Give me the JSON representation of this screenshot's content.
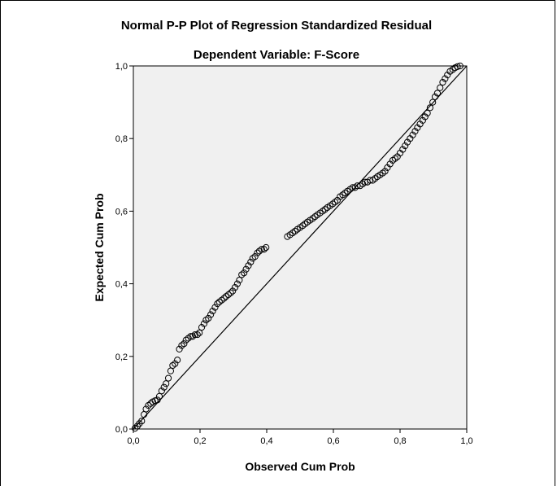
{
  "chart_data": {
    "type": "scatter",
    "title": "Normal P-P Plot of Regression Standardized Residual",
    "subtitle": "Dependent Variable: F-Score",
    "xlabel": "Observed Cum Prob",
    "ylabel": "Expected Cum Prob",
    "xlim": [
      0.0,
      1.0
    ],
    "ylim": [
      0.0,
      1.0
    ],
    "x_ticks": [
      "0,0",
      "0,2",
      "0,4",
      "0,6",
      "0,8",
      "1,0"
    ],
    "y_ticks": [
      "0,0",
      "0,2",
      "0,4",
      "0,6",
      "0,8",
      "1,0"
    ],
    "grid": false,
    "reference_line": [
      [
        0.0,
        0.0
      ],
      [
        1.0,
        1.0
      ]
    ],
    "colors": {
      "plot_background": "#f0f0f0",
      "marker_edge": "#000000",
      "line": "#000000"
    },
    "series": [
      {
        "marker": "circle-open",
        "points": [
          [
            0.005,
            0.002
          ],
          [
            0.012,
            0.008
          ],
          [
            0.018,
            0.015
          ],
          [
            0.025,
            0.022
          ],
          [
            0.032,
            0.04
          ],
          [
            0.038,
            0.055
          ],
          [
            0.045,
            0.065
          ],
          [
            0.052,
            0.07
          ],
          [
            0.058,
            0.075
          ],
          [
            0.065,
            0.078
          ],
          [
            0.072,
            0.08
          ],
          [
            0.078,
            0.09
          ],
          [
            0.085,
            0.105
          ],
          [
            0.092,
            0.115
          ],
          [
            0.098,
            0.125
          ],
          [
            0.105,
            0.14
          ],
          [
            0.112,
            0.16
          ],
          [
            0.118,
            0.175
          ],
          [
            0.125,
            0.18
          ],
          [
            0.132,
            0.19
          ],
          [
            0.138,
            0.22
          ],
          [
            0.145,
            0.23
          ],
          [
            0.152,
            0.235
          ],
          [
            0.158,
            0.245
          ],
          [
            0.165,
            0.25
          ],
          [
            0.172,
            0.255
          ],
          [
            0.178,
            0.255
          ],
          [
            0.185,
            0.26
          ],
          [
            0.192,
            0.26
          ],
          [
            0.198,
            0.265
          ],
          [
            0.205,
            0.28
          ],
          [
            0.212,
            0.29
          ],
          [
            0.218,
            0.3
          ],
          [
            0.225,
            0.305
          ],
          [
            0.232,
            0.315
          ],
          [
            0.238,
            0.325
          ],
          [
            0.245,
            0.335
          ],
          [
            0.252,
            0.345
          ],
          [
            0.258,
            0.35
          ],
          [
            0.265,
            0.355
          ],
          [
            0.272,
            0.36
          ],
          [
            0.278,
            0.365
          ],
          [
            0.285,
            0.37
          ],
          [
            0.292,
            0.375
          ],
          [
            0.298,
            0.38
          ],
          [
            0.305,
            0.39
          ],
          [
            0.312,
            0.4
          ],
          [
            0.318,
            0.41
          ],
          [
            0.325,
            0.425
          ],
          [
            0.332,
            0.43
          ],
          [
            0.338,
            0.44
          ],
          [
            0.345,
            0.45
          ],
          [
            0.352,
            0.46
          ],
          [
            0.358,
            0.47
          ],
          [
            0.365,
            0.475
          ],
          [
            0.372,
            0.485
          ],
          [
            0.378,
            0.49
          ],
          [
            0.385,
            0.495
          ],
          [
            0.392,
            0.495
          ],
          [
            0.398,
            0.5
          ],
          [
            0.462,
            0.53
          ],
          [
            0.47,
            0.535
          ],
          [
            0.478,
            0.54
          ],
          [
            0.485,
            0.545
          ],
          [
            0.492,
            0.55
          ],
          [
            0.5,
            0.555
          ],
          [
            0.508,
            0.56
          ],
          [
            0.515,
            0.565
          ],
          [
            0.522,
            0.57
          ],
          [
            0.53,
            0.575
          ],
          [
            0.538,
            0.58
          ],
          [
            0.545,
            0.585
          ],
          [
            0.552,
            0.59
          ],
          [
            0.56,
            0.595
          ],
          [
            0.568,
            0.6
          ],
          [
            0.575,
            0.605
          ],
          [
            0.582,
            0.61
          ],
          [
            0.59,
            0.615
          ],
          [
            0.598,
            0.62
          ],
          [
            0.605,
            0.625
          ],
          [
            0.612,
            0.63
          ],
          [
            0.62,
            0.64
          ],
          [
            0.628,
            0.645
          ],
          [
            0.635,
            0.65
          ],
          [
            0.642,
            0.655
          ],
          [
            0.65,
            0.66
          ],
          [
            0.658,
            0.665
          ],
          [
            0.665,
            0.665
          ],
          [
            0.672,
            0.67
          ],
          [
            0.68,
            0.67
          ],
          [
            0.688,
            0.675
          ],
          [
            0.695,
            0.68
          ],
          [
            0.702,
            0.68
          ],
          [
            0.71,
            0.685
          ],
          [
            0.718,
            0.685
          ],
          [
            0.725,
            0.69
          ],
          [
            0.732,
            0.695
          ],
          [
            0.74,
            0.7
          ],
          [
            0.748,
            0.705
          ],
          [
            0.755,
            0.71
          ],
          [
            0.762,
            0.72
          ],
          [
            0.77,
            0.73
          ],
          [
            0.778,
            0.74
          ],
          [
            0.785,
            0.745
          ],
          [
            0.792,
            0.75
          ],
          [
            0.8,
            0.76
          ],
          [
            0.808,
            0.77
          ],
          [
            0.815,
            0.78
          ],
          [
            0.822,
            0.79
          ],
          [
            0.83,
            0.8
          ],
          [
            0.838,
            0.81
          ],
          [
            0.845,
            0.82
          ],
          [
            0.852,
            0.83
          ],
          [
            0.86,
            0.84
          ],
          [
            0.868,
            0.85
          ],
          [
            0.875,
            0.86
          ],
          [
            0.882,
            0.87
          ],
          [
            0.89,
            0.885
          ],
          [
            0.898,
            0.9
          ],
          [
            0.905,
            0.915
          ],
          [
            0.912,
            0.925
          ],
          [
            0.92,
            0.94
          ],
          [
            0.928,
            0.955
          ],
          [
            0.935,
            0.965
          ],
          [
            0.942,
            0.975
          ],
          [
            0.95,
            0.985
          ],
          [
            0.958,
            0.99
          ],
          [
            0.965,
            0.995
          ],
          [
            0.972,
            0.998
          ],
          [
            0.98,
            1.0
          ]
        ]
      }
    ]
  }
}
